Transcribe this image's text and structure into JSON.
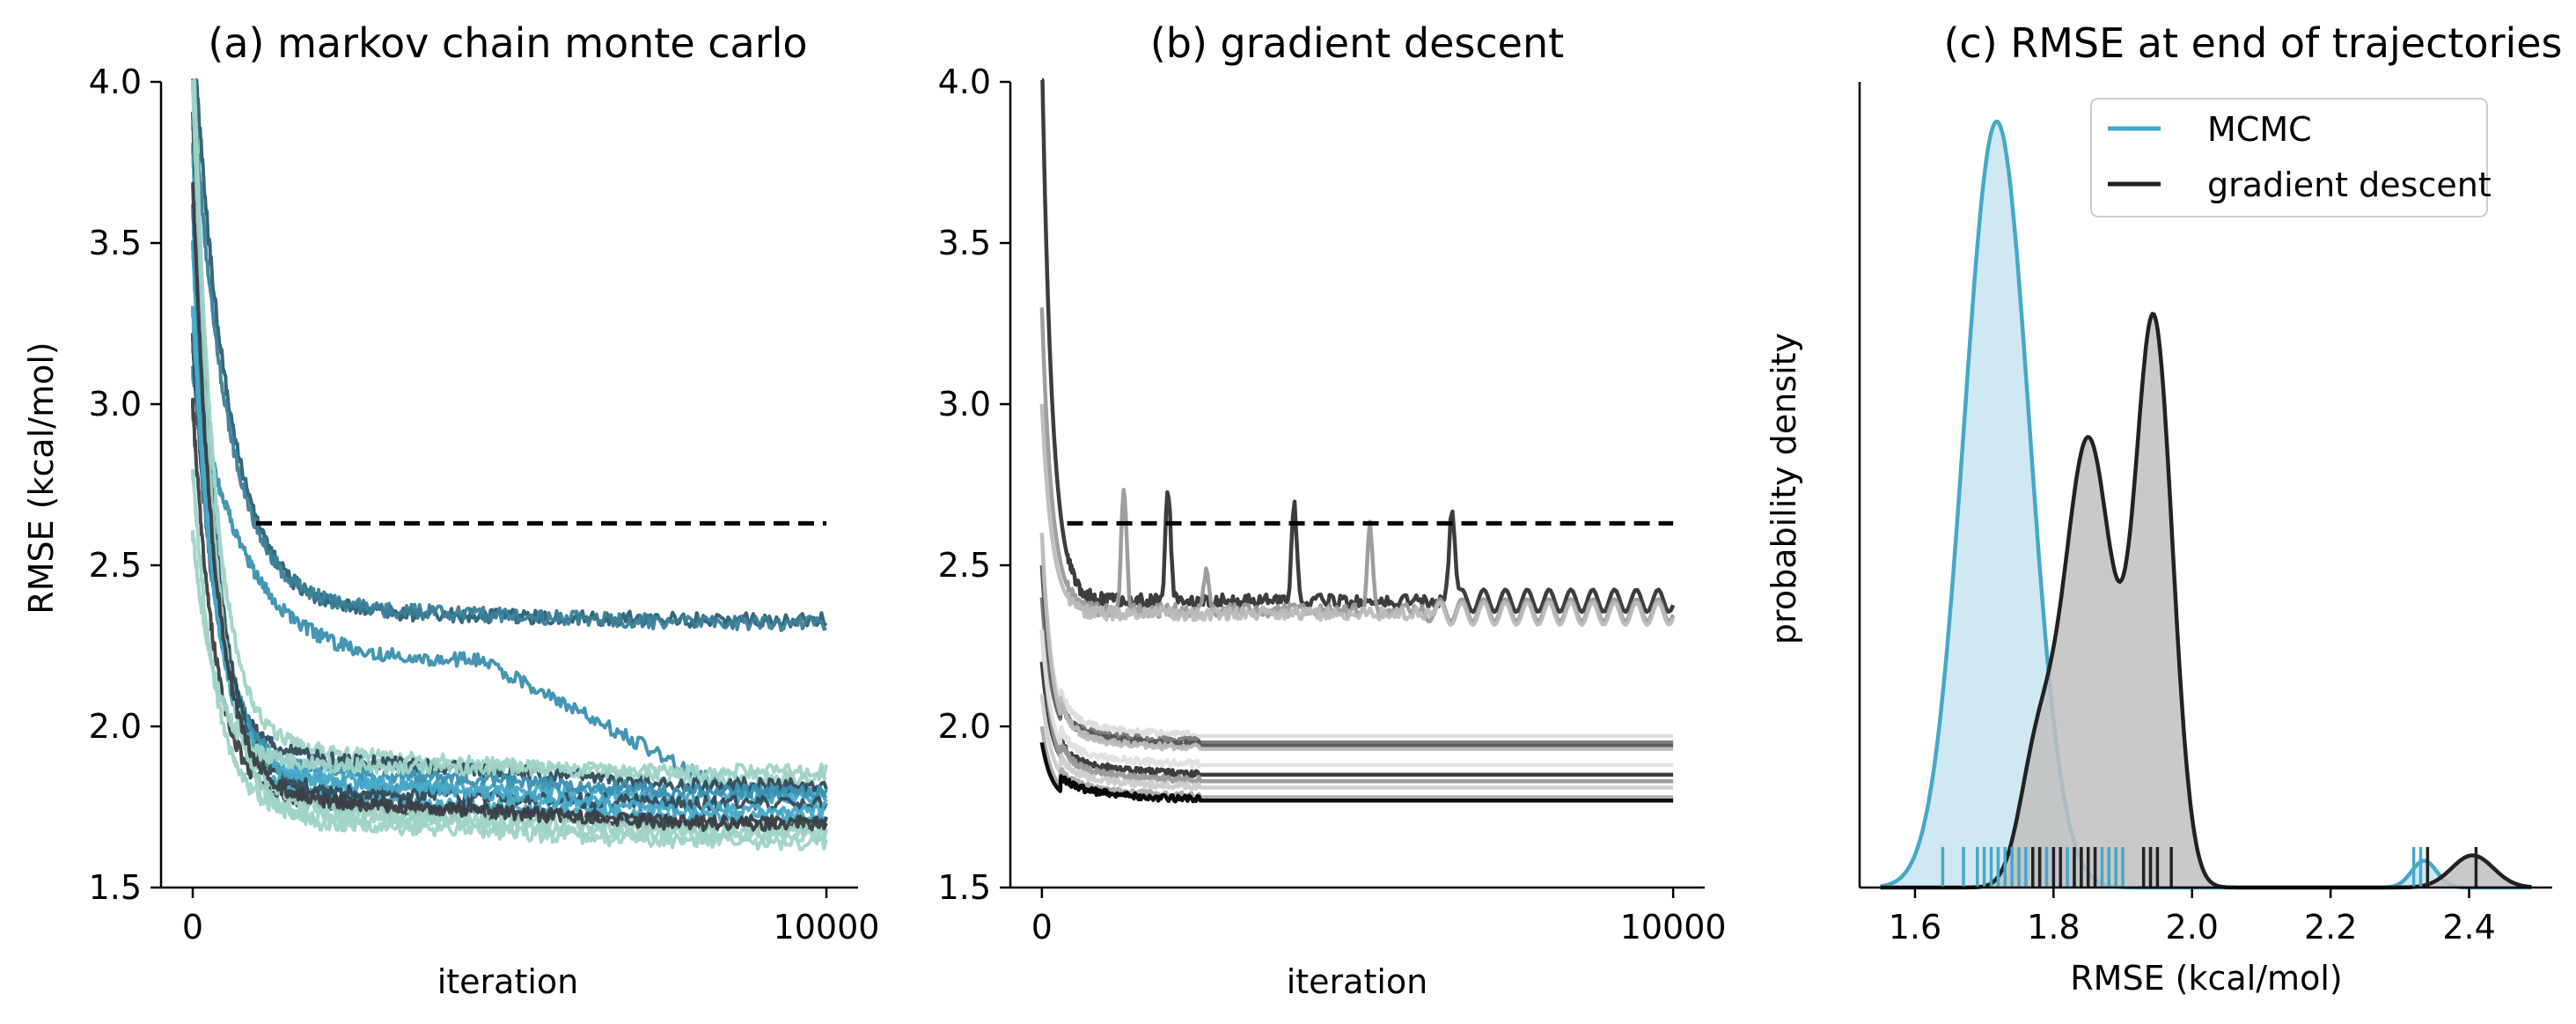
{
  "chart_data": [
    {
      "type": "line",
      "title": "(a) markov chain monte carlo",
      "xlabel": "iteration",
      "ylabel": "RMSE (kcal/mol)",
      "xlim": [
        -500,
        10500
      ],
      "ylim": [
        1.5,
        4.0
      ],
      "xticks": [
        0,
        10000
      ],
      "yticks": [
        1.5,
        2.0,
        2.5,
        3.0,
        3.5,
        4.0
      ],
      "ytick_labels": [
        "1.5",
        "2.0",
        "2.5",
        "3.0",
        "3.5",
        "4.0"
      ],
      "reference_line": {
        "y": 2.63,
        "x_start": 1000,
        "x_end": 10000,
        "style": "dashed",
        "color": "#000000"
      },
      "series_trend": [
        {
          "start": 4.2,
          "mid_x": 3000,
          "mid": 2.35,
          "end": 2.33,
          "color": "#2a5f73"
        },
        {
          "start": 4.0,
          "mid_x": 3000,
          "mid": 2.36,
          "end": 2.32,
          "color": "#3a7f98"
        },
        {
          "start": 3.1,
          "mid_x": 4600,
          "mid": 2.2,
          "end": 1.8,
          "color": "#3a90b0"
        },
        {
          "start": 4.1,
          "mid_x": 2000,
          "mid": 1.92,
          "end": 1.84,
          "color": "#9fd3c7"
        },
        {
          "start": 3.8,
          "mid_x": 2000,
          "mid": 1.82,
          "end": 1.78,
          "color": "#46a8c8"
        },
        {
          "start": 3.2,
          "mid_x": 2000,
          "mid": 1.9,
          "end": 1.82,
          "color": "#2e4b58"
        },
        {
          "start": 3.5,
          "mid_x": 2000,
          "mid": 1.78,
          "end": 1.72,
          "color": "#46a8c8"
        },
        {
          "start": 3.0,
          "mid_x": 2000,
          "mid": 1.76,
          "end": 1.7,
          "color": "#3a3f44"
        },
        {
          "start": 4.2,
          "mid_x": 2000,
          "mid": 1.74,
          "end": 1.68,
          "color": "#9fd3c7"
        },
        {
          "start": 3.6,
          "mid_x": 2000,
          "mid": 1.86,
          "end": 1.8,
          "color": "#3a90b0"
        },
        {
          "start": 2.8,
          "mid_x": 2000,
          "mid": 1.72,
          "end": 1.66,
          "color": "#9fd3c7"
        },
        {
          "start": 3.9,
          "mid_x": 2000,
          "mid": 1.8,
          "end": 1.76,
          "color": "#2e4b58"
        },
        {
          "start": 3.3,
          "mid_x": 2000,
          "mid": 1.84,
          "end": 1.74,
          "color": "#46a8c8"
        },
        {
          "start": 4.0,
          "mid_x": 2000,
          "mid": 1.7,
          "end": 1.64,
          "color": "#9fd3c7"
        },
        {
          "start": 2.6,
          "mid_x": 2000,
          "mid": 1.88,
          "end": 1.86,
          "color": "#9fd3c7"
        },
        {
          "start": 3.7,
          "mid_x": 2000,
          "mid": 1.77,
          "end": 1.7,
          "color": "#3a3f44"
        }
      ]
    },
    {
      "type": "line",
      "title": "(b) gradient descent",
      "xlabel": "iteration",
      "ylabel": "",
      "xlim": [
        -500,
        10500
      ],
      "ylim": [
        1.5,
        4.0
      ],
      "xticks": [
        0,
        10000
      ],
      "yticks": [
        1.5,
        2.0,
        2.5,
        3.0,
        3.5,
        4.0
      ],
      "ytick_labels": [
        "1.5",
        "2.0",
        "2.5",
        "3.0",
        "3.5",
        "4.0"
      ],
      "reference_line": {
        "y": 2.63,
        "x_start": 400,
        "x_end": 10000,
        "style": "dashed",
        "color": "#000000"
      },
      "series_trend": [
        {
          "start": 4.1,
          "end": 2.39,
          "color": "#333333",
          "spikes": [
            {
              "x": 2000,
              "y": 2.73
            },
            {
              "x": 4000,
              "y": 2.68
            },
            {
              "x": 6500,
              "y": 2.7
            }
          ],
          "osc_from": 6500
        },
        {
          "start": 3.3,
          "end": 2.36,
          "color": "#999999",
          "spikes": [
            {
              "x": 1300,
              "y": 2.73
            },
            {
              "x": 2600,
              "y": 2.48
            },
            {
              "x": 5200,
              "y": 2.62
            }
          ],
          "osc_from": 6000
        },
        {
          "start": 3.0,
          "end": 2.35,
          "color": "#bbbbbb",
          "spikes": [],
          "osc_from": 6200
        },
        {
          "start": 2.6,
          "end": 1.97,
          "color": "#dddddd"
        },
        {
          "start": 2.4,
          "end": 1.95,
          "color": "#777777"
        },
        {
          "start": 2.5,
          "end": 1.94,
          "color": "#555555"
        },
        {
          "start": 2.2,
          "end": 1.85,
          "color": "#333333"
        },
        {
          "start": 2.3,
          "end": 1.83,
          "color": "#999999"
        },
        {
          "start": 2.1,
          "end": 1.81,
          "color": "#cccccc"
        },
        {
          "start": 2.0,
          "end": 1.78,
          "color": "#aaaaaa"
        },
        {
          "start": 1.95,
          "end": 1.77,
          "color": "#000000"
        },
        {
          "start": 2.6,
          "end": 1.93,
          "color": "#bbbbbb"
        },
        {
          "start": 2.3,
          "end": 1.88,
          "color": "#e0e0e0"
        }
      ]
    },
    {
      "type": "area",
      "title": "(c) RMSE at end of trajectories",
      "xlabel": "RMSE (kcal/mol)",
      "ylabel": "probability density",
      "xlim": [
        1.52,
        2.52
      ],
      "xticks": [
        1.6,
        1.8,
        2.0,
        2.2,
        2.4
      ],
      "xtick_labels": [
        "1.6",
        "1.8",
        "2.0",
        "2.2",
        "2.4"
      ],
      "legend_position": "top-right",
      "series": [
        {
          "name": "MCMC",
          "color": "#46a8c8",
          "fill": "#d0e8f2",
          "components": [
            {
              "mu": 1.718,
              "sigma": 0.047,
              "height": 1.0
            },
            {
              "mu": 2.335,
              "sigma": 0.018,
              "height": 0.035
            }
          ],
          "rug": [
            1.64,
            1.67,
            1.69,
            1.7,
            1.71,
            1.72,
            1.73,
            1.74,
            1.75,
            1.76,
            1.77,
            1.78,
            1.79,
            1.8,
            1.81,
            1.82,
            1.83,
            1.84,
            1.85,
            1.86,
            1.87,
            1.88,
            1.89,
            1.9,
            2.32,
            2.33,
            2.34
          ]
        },
        {
          "name": "gradient descent",
          "color": "#222222",
          "fill": "#bfbfbf",
          "components": [
            {
              "mu": 1.775,
              "sigma": 0.025,
              "height": 0.15
            },
            {
              "mu": 1.85,
              "sigma": 0.036,
              "height": 0.585
            },
            {
              "mu": 1.945,
              "sigma": 0.027,
              "height": 0.73
            },
            {
              "mu": 2.405,
              "sigma": 0.03,
              "height": 0.042
            }
          ],
          "rug": [
            1.77,
            1.78,
            1.8,
            1.81,
            1.83,
            1.84,
            1.85,
            1.86,
            1.93,
            1.94,
            1.95,
            1.97,
            2.34,
            2.41
          ]
        }
      ]
    }
  ]
}
